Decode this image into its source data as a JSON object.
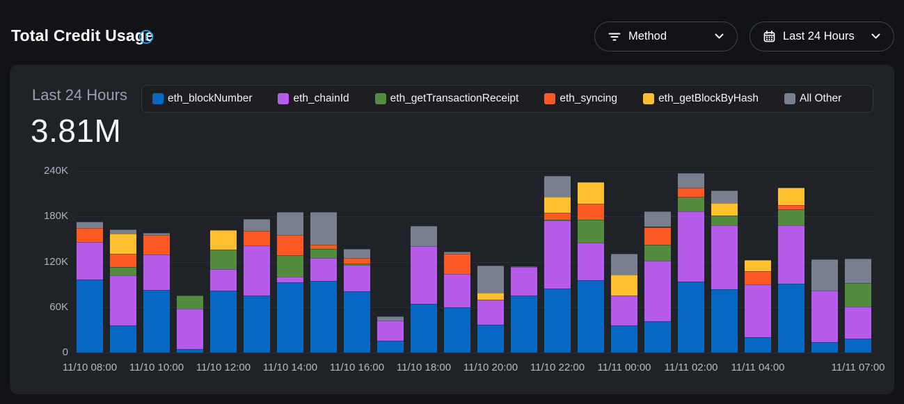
{
  "header": {
    "title": "Total Credit Usage",
    "info_icon": "info-circle-icon"
  },
  "toolbar": {
    "method_button": {
      "label": "Method",
      "icon": "filter-icon",
      "chevron": "chevron-down-icon"
    },
    "range_button": {
      "label": "Last 24 Hours",
      "icon": "calendar-icon",
      "chevron": "chevron-down-icon"
    }
  },
  "card": {
    "range_label": "Last 24 Hours",
    "total_value": "3.81M"
  },
  "colors": {
    "page_bg": "#121316",
    "card_bg": "#1f2227",
    "accent_blue": "#1fa8f3",
    "grid": "#2b2e33"
  },
  "chart_data": {
    "type": "bar",
    "stacked": true,
    "title": "Total Credit Usage",
    "period_label": "Last 24 Hours",
    "total_label": "3.81M",
    "legend_position": "top",
    "grid": true,
    "ylim_k": [
      0,
      240
    ],
    "values_unit": "thousands of credits (K)",
    "y_ticks": [
      {
        "label": "240K",
        "value_k": 240
      },
      {
        "label": "180K",
        "value_k": 180
      },
      {
        "label": "120K",
        "value_k": 120
      },
      {
        "label": "60K",
        "value_k": 60
      },
      {
        "label": "0",
        "value_k": 0
      }
    ],
    "series": [
      {
        "name": "eth_blockNumber",
        "color": "#0768c4"
      },
      {
        "name": "eth_chainId",
        "color": "#b55ced"
      },
      {
        "name": "eth_getTransactionReceipt",
        "color": "#548c3f"
      },
      {
        "name": "eth_syncing",
        "color": "#fb5a25"
      },
      {
        "name": "eth_getBlockByHash",
        "color": "#fec02f"
      },
      {
        "name": "All Other",
        "color": "#78808f"
      }
    ],
    "bars": [
      {
        "tick": "11/10 08:00",
        "values_k": [
          97,
          49,
          0,
          19,
          0,
          8
        ]
      },
      {
        "tick": null,
        "values_k": [
          36,
          66,
          11,
          18,
          26,
          6
        ]
      },
      {
        "tick": "11/10 10:00",
        "values_k": [
          83,
          47,
          0,
          25,
          0,
          3
        ]
      },
      {
        "tick": null,
        "values_k": [
          5,
          53,
          17,
          0,
          0,
          0
        ]
      },
      {
        "tick": "11/10 12:00",
        "values_k": [
          82,
          28,
          26,
          0,
          26,
          0
        ]
      },
      {
        "tick": null,
        "values_k": [
          75,
          67,
          0,
          19,
          0,
          16
        ]
      },
      {
        "tick": "11/10 14:00",
        "values_k": [
          93,
          7,
          29,
          26,
          0,
          31
        ]
      },
      {
        "tick": null,
        "values_k": [
          95,
          30,
          12,
          6,
          0,
          43
        ]
      },
      {
        "tick": "11/10 16:00",
        "values_k": [
          81,
          35,
          2,
          7,
          0,
          12
        ]
      },
      {
        "tick": null,
        "values_k": [
          16,
          26,
          0,
          0,
          0,
          6
        ]
      },
      {
        "tick": "11/10 18:00",
        "values_k": [
          64,
          77,
          0,
          0,
          0,
          26
        ]
      },
      {
        "tick": null,
        "values_k": [
          60,
          44,
          0,
          27,
          0,
          2
        ]
      },
      {
        "tick": "11/10 20:00",
        "values_k": [
          37,
          33,
          0,
          0,
          9,
          36
        ]
      },
      {
        "tick": null,
        "values_k": [
          75,
          38,
          1,
          0,
          0,
          0
        ]
      },
      {
        "tick": "11/10 22:00",
        "values_k": [
          85,
          90,
          1,
          9,
          21,
          28
        ]
      },
      {
        "tick": null,
        "values_k": [
          96,
          49,
          31,
          21,
          28,
          0
        ]
      },
      {
        "tick": "11/11 00:00",
        "values_k": [
          36,
          39,
          0,
          0,
          28,
          28
        ]
      },
      {
        "tick": null,
        "values_k": [
          41,
          80,
          22,
          23,
          0,
          21
        ]
      },
      {
        "tick": "11/11 02:00",
        "values_k": [
          94,
          93,
          19,
          12,
          0,
          19
        ]
      },
      {
        "tick": null,
        "values_k": [
          84,
          84,
          13,
          0,
          17,
          16
        ]
      },
      {
        "tick": "11/11 04:00",
        "values_k": [
          20,
          70,
          0,
          18,
          14,
          0
        ]
      },
      {
        "tick": null,
        "values_k": [
          91,
          77,
          21,
          6,
          23,
          0
        ]
      },
      {
        "tick": null,
        "values_k": [
          14,
          68,
          0,
          0,
          0,
          41
        ]
      },
      {
        "tick": "11/11 07:00",
        "values_k": [
          18,
          43,
          31,
          0,
          0,
          32
        ]
      }
    ]
  }
}
